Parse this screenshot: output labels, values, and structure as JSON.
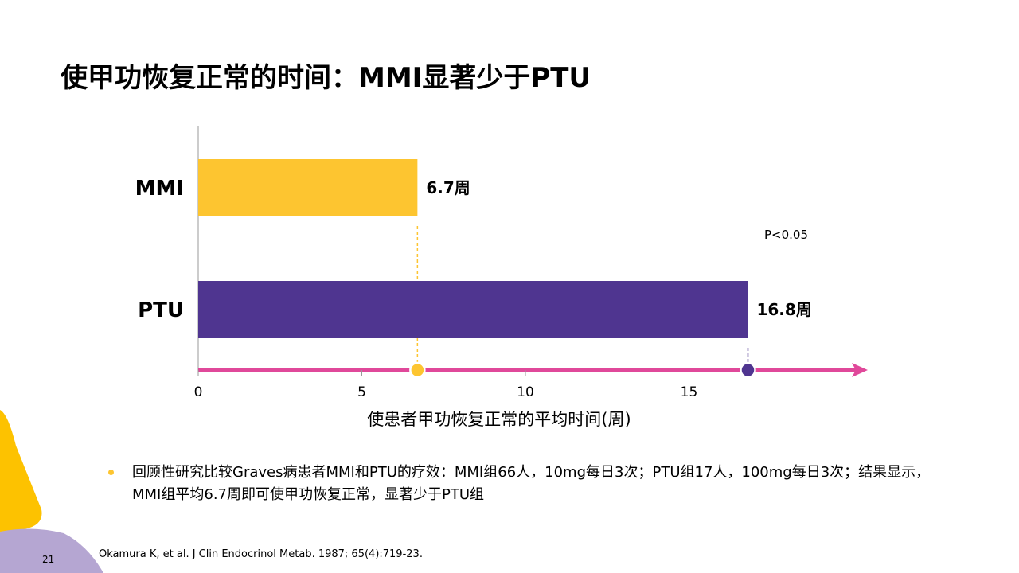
{
  "title": "使甲功恢复正常的时间：MMI显著少于PTU",
  "chart_data": {
    "type": "bar",
    "orientation": "horizontal",
    "categories": [
      "MMI",
      "PTU"
    ],
    "values": [
      6.7,
      16.8
    ],
    "data_labels": [
      "6.7周",
      "16.8周"
    ],
    "colors": [
      "#fdc530",
      "#4f3590"
    ],
    "axis_color": "#e0489a",
    "xlabel": "使患者甲功恢复正常的平均时间(周)",
    "xticks": [
      0,
      5,
      10,
      15
    ],
    "xlim": [
      0,
      20
    ],
    "annotation": "P<0.05",
    "grid": false
  },
  "bullet": "回顾性研究比较Graves病患者MMI和PTU的疗效：MMI组66人，10mg每日3次；PTU组17人，100mg每日3次；结果显示，MMI组平均6.7周即可使甲功恢复正常，显著少于PTU组",
  "reference": "Okamura K, et al. J Clin Endocrinol Metab. 1987; 65(4):719-23.",
  "page_number": "21"
}
